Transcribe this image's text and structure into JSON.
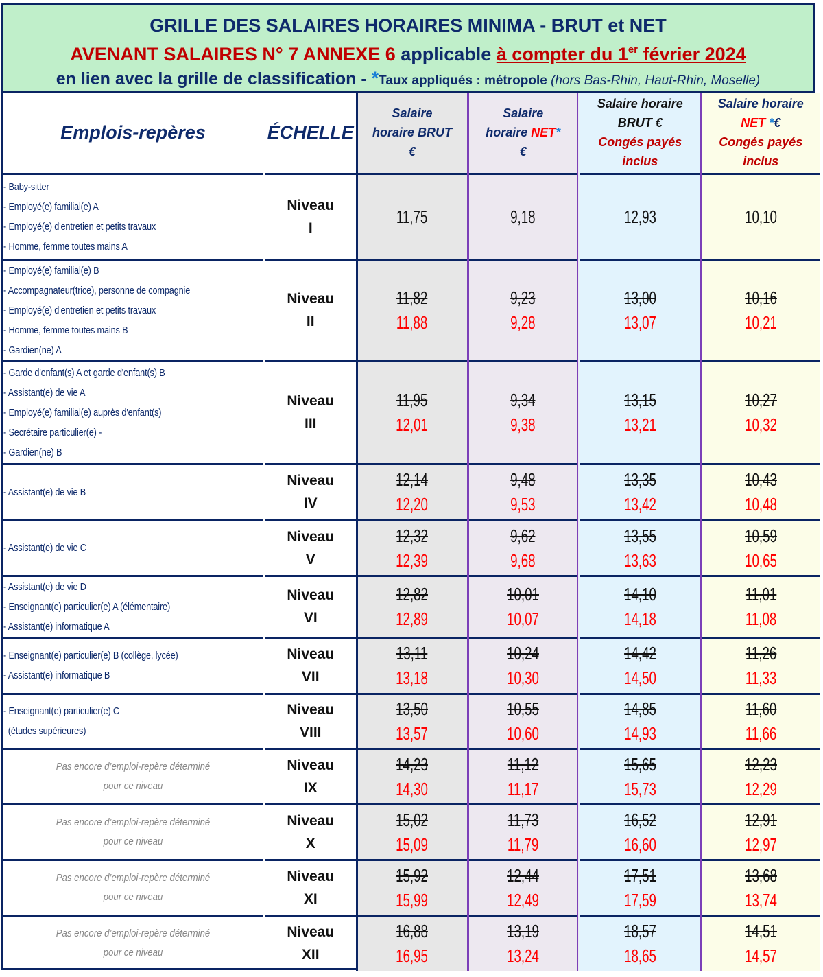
{
  "banner": {
    "line1": "GRILLE DES SALAIRES HORAIRES MINIMA - BRUT et NET",
    "line2_red": "AVENANT SALAIRES N° 7 ANNEXE 6",
    "line2_mid": " applicable ",
    "line2_date_pre": "à compter du 1",
    "line2_date_sup": "er",
    "line2_date_post": " février 2024",
    "line3_main": "en lien avec la grille de classification - ",
    "line3_star": "*",
    "line3_small": "Taux appliqués : métropole ",
    "line3_ital": "(hors Bas-Rhin, Haut-Rhin, Moselle)"
  },
  "columns": {
    "emplois": "Emplois-repères",
    "echelle": "ÉCHELLE",
    "brut_l1": "Salaire",
    "brut_l2": "horaire BRUT",
    "brut_l3": "€",
    "net_l1": "Salaire",
    "net_l2a": "horaire ",
    "net_l2b": "NET",
    "net_l2c": "*",
    "net_l3": "€",
    "brutcp_l1": "Salaire horaire",
    "brutcp_l2": "BRUT €",
    "brutcp_l3": "Congés payés",
    "brutcp_l4": "inclus",
    "netcp_l1": "Salaire horaire",
    "netcp_l2a": "NET ",
    "netcp_l2b": "*",
    "netcp_l2c": "€",
    "netcp_l3": "Congés payés",
    "netcp_l4": "inclus"
  },
  "colors": {
    "banner_bg": "#c0efca",
    "navy": "#0a2463",
    "purple_border": "#7b3fb8",
    "new_value_red": "#ff0000",
    "col_brut_bg": "#e7e7e7",
    "col_net_bg": "#ede8f0",
    "col_brut_cp_bg": "#e2f3fd",
    "col_net_cp_bg": "#fcfde8"
  },
  "placeholder_text": {
    "l1": "Pas encore d’emploi-repère déterminé",
    "l2": "pour ce niveau"
  },
  "rows": [
    {
      "niveau": "Niveau",
      "roman": "I",
      "emplois": [
        "- Baby-sitter",
        "- Employé(e) familial(e) A",
        "- Employé(e) d'entretien et petits travaux",
        "- Homme, femme toutes mains A"
      ],
      "brut": {
        "old": null,
        "new": "11,75"
      },
      "net": {
        "old": null,
        "new": "9,18"
      },
      "brut_cp": {
        "old": null,
        "new": "12,93"
      },
      "net_cp": {
        "old": null,
        "new": "10,10"
      }
    },
    {
      "niveau": "Niveau",
      "roman": "II",
      "emplois": [
        "- Employé(e) familial(e) B",
        "- Accompagnateur(trice), personne de compagnie",
        "- Employé(e) d'entretien et petits travaux",
        "- Homme, femme toutes mains B",
        "- Gardien(ne) A"
      ],
      "brut": {
        "old": "11,82",
        "new": "11,88"
      },
      "net": {
        "old": "9,23",
        "new": "9,28"
      },
      "brut_cp": {
        "old": "13,00",
        "new": "13,07"
      },
      "net_cp": {
        "old": "10,16",
        "new": "10,21"
      }
    },
    {
      "niveau": "Niveau",
      "roman": "III",
      "emplois": [
        "- Garde d'enfant(s) A et garde d'enfant(s) B",
        "- Assistant(e) de vie A",
        "- Employé(e) familial(e) auprès d'enfant(s)",
        "- Secrétaire particulier(e) -",
        "- Gardien(ne) B"
      ],
      "brut": {
        "old": "11,95",
        "new": "12,01"
      },
      "net": {
        "old": "9,34",
        "new": "9,38"
      },
      "brut_cp": {
        "old": "13,15",
        "new": "13,21"
      },
      "net_cp": {
        "old": "10,27",
        "new": "10,32"
      }
    },
    {
      "niveau": "Niveau",
      "roman": "IV",
      "emplois": [
        "- Assistant(e) de vie B"
      ],
      "brut": {
        "old": "12,14",
        "new": "12,20"
      },
      "net": {
        "old": "9,48",
        "new": "9,53"
      },
      "brut_cp": {
        "old": "13,35",
        "new": "13,42"
      },
      "net_cp": {
        "old": "10,43",
        "new": "10,48"
      }
    },
    {
      "niveau": "Niveau",
      "roman": "V",
      "emplois": [
        "- Assistant(e) de vie C"
      ],
      "brut": {
        "old": "12,32",
        "new": "12,39"
      },
      "net": {
        "old": "9,62",
        "new": "9,68"
      },
      "brut_cp": {
        "old": "13,55",
        "new": "13,63"
      },
      "net_cp": {
        "old": "10,59",
        "new": "10,65"
      }
    },
    {
      "niveau": "Niveau",
      "roman": "VI",
      "emplois": [
        "- Assistant(e) de vie D",
        "- Enseignant(e) particulier(e) A (élémentaire)",
        "- Assistant(e) informatique A"
      ],
      "brut": {
        "old": "12,82",
        "new": "12,89"
      },
      "net": {
        "old": "10,01",
        "new": "10,07"
      },
      "brut_cp": {
        "old": "14,10",
        "new": "14,18"
      },
      "net_cp": {
        "old": "11,01",
        "new": "11,08"
      }
    },
    {
      "niveau": "Niveau",
      "roman": "VII",
      "emplois": [
        "- Enseignant(e) particulier(e) B (collège, lycée)",
        "- Assistant(e) informatique B"
      ],
      "brut": {
        "old": "13,11",
        "new": "13,18"
      },
      "net": {
        "old": "10,24",
        "new": "10,30"
      },
      "brut_cp": {
        "old": "14,42",
        "new": "14,50"
      },
      "net_cp": {
        "old": "11,26",
        "new": "11,33"
      }
    },
    {
      "niveau": "Niveau",
      "roman": "VIII",
      "emplois": [
        "- Enseignant(e) particulier(e) C",
        "  (études supérieures)"
      ],
      "brut": {
        "old": "13,50",
        "new": "13,57"
      },
      "net": {
        "old": "10,55",
        "new": "10,60"
      },
      "brut_cp": {
        "old": "14,85",
        "new": "14,93"
      },
      "net_cp": {
        "old": "11,60",
        "new": "11,66"
      }
    },
    {
      "niveau": "Niveau",
      "roman": "IX",
      "emplois": [],
      "brut": {
        "old": "14,23",
        "new": "14,30"
      },
      "net": {
        "old": "11,12",
        "new": "11,17"
      },
      "brut_cp": {
        "old": "15,65",
        "new": "15,73"
      },
      "net_cp": {
        "old": "12,23",
        "new": "12,29"
      }
    },
    {
      "niveau": "Niveau",
      "roman": "X",
      "emplois": [],
      "brut": {
        "old": "15,02",
        "new": "15,09"
      },
      "net": {
        "old": "11,73",
        "new": "11,79"
      },
      "brut_cp": {
        "old": "16,52",
        "new": "16,60"
      },
      "net_cp": {
        "old": "12,91",
        "new": "12,97"
      }
    },
    {
      "niveau": "Niveau",
      "roman": "XI",
      "emplois": [],
      "brut": {
        "old": "15,92",
        "new": "15,99"
      },
      "net": {
        "old": "12,44",
        "new": "12,49"
      },
      "brut_cp": {
        "old": "17,51",
        "new": "17,59"
      },
      "net_cp": {
        "old": "13,68",
        "new": "13,74"
      }
    },
    {
      "niveau": "Niveau",
      "roman": "XII",
      "emplois": [],
      "brut": {
        "old": "16,88",
        "new": "16,95"
      },
      "net": {
        "old": "13,19",
        "new": "13,24"
      },
      "brut_cp": {
        "old": "18,57",
        "new": "18,65"
      },
      "net_cp": {
        "old": "14,51",
        "new": "14,57"
      }
    }
  ],
  "chart_data": {
    "type": "table",
    "title": "GRILLE DES SALAIRES HORAIRES MINIMA - BRUT et NET",
    "subtitle": "AVENANT SALAIRES N° 7 ANNEXE 6 applicable à compter du 1er février 2024",
    "columns": [
      "Échelle",
      "Salaire horaire BRUT €",
      "Salaire horaire NET* €",
      "Salaire horaire BRUT € Congés payés inclus",
      "Salaire horaire NET* € Congés payés inclus"
    ],
    "categories": [
      "I",
      "II",
      "III",
      "IV",
      "V",
      "VI",
      "VII",
      "VIII",
      "IX",
      "X",
      "XI",
      "XII"
    ],
    "series": [
      {
        "name": "Brut (nouveau)",
        "values": [
          11.75,
          11.88,
          12.01,
          12.2,
          12.39,
          12.89,
          13.18,
          13.57,
          14.3,
          15.09,
          15.99,
          16.95
        ]
      },
      {
        "name": "Brut (ancien)",
        "values": [
          null,
          11.82,
          11.95,
          12.14,
          12.32,
          12.82,
          13.11,
          13.5,
          14.23,
          15.02,
          15.92,
          16.88
        ]
      },
      {
        "name": "Net (nouveau)",
        "values": [
          9.18,
          9.28,
          9.38,
          9.53,
          9.68,
          10.07,
          10.3,
          10.6,
          11.17,
          11.79,
          12.49,
          13.24
        ]
      },
      {
        "name": "Net (ancien)",
        "values": [
          null,
          9.23,
          9.34,
          9.48,
          9.62,
          10.01,
          10.24,
          10.55,
          11.12,
          11.73,
          12.44,
          13.19
        ]
      },
      {
        "name": "Brut CP inclus (nouveau)",
        "values": [
          12.93,
          13.07,
          13.21,
          13.42,
          13.63,
          14.18,
          14.5,
          14.93,
          15.73,
          16.6,
          17.59,
          18.65
        ]
      },
      {
        "name": "Brut CP inclus (ancien)",
        "values": [
          null,
          13.0,
          13.15,
          13.35,
          13.55,
          14.1,
          14.42,
          14.85,
          15.65,
          16.52,
          17.51,
          18.57
        ]
      },
      {
        "name": "Net CP inclus (nouveau)",
        "values": [
          10.1,
          10.21,
          10.32,
          10.48,
          10.65,
          11.08,
          11.33,
          11.66,
          12.29,
          12.97,
          13.74,
          14.57
        ]
      },
      {
        "name": "Net CP inclus (ancien)",
        "values": [
          null,
          10.16,
          10.27,
          10.43,
          10.59,
          11.01,
          11.26,
          11.6,
          12.23,
          12.91,
          13.68,
          14.51
        ]
      }
    ]
  }
}
